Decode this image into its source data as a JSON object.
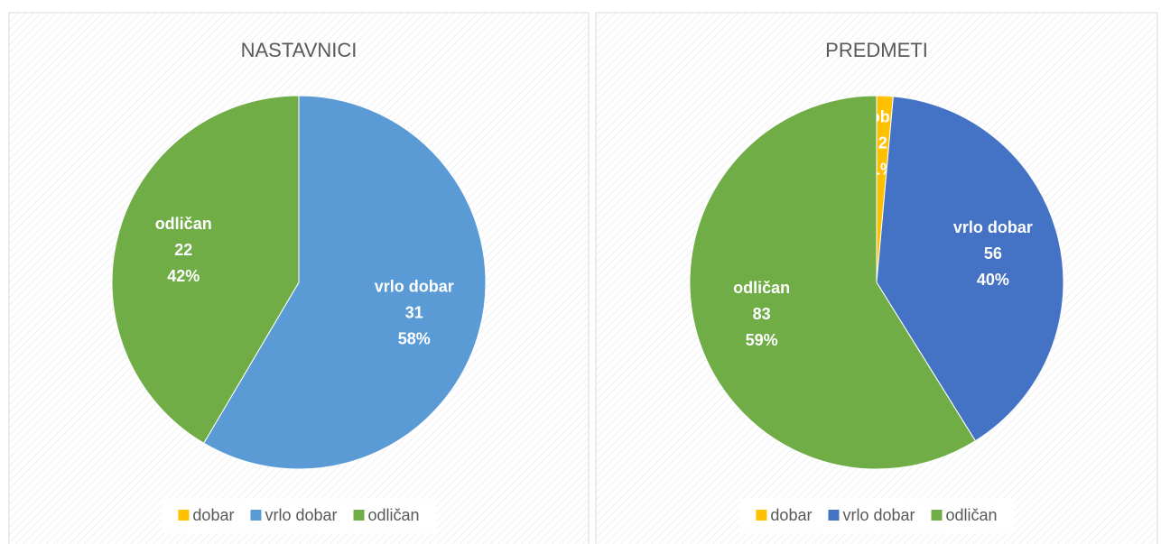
{
  "chart_data": [
    {
      "type": "pie",
      "title": "NASTAVNICI",
      "categories": [
        "dobar",
        "vrlo dobar",
        "odličan"
      ],
      "values": [
        null,
        31,
        22
      ],
      "percentages": [
        null,
        58,
        42
      ],
      "percentage_labels": [
        null,
        "58%",
        "42%"
      ],
      "colors": [
        "#ffc000",
        "#5b9bd5",
        "#70ad47"
      ],
      "legend": "bottom"
    },
    {
      "type": "pie",
      "title": "PREDMETI",
      "categories": [
        "dobar",
        "vrlo dobar",
        "odličan"
      ],
      "values": [
        2,
        56,
        83
      ],
      "percentages": [
        1,
        40,
        59
      ],
      "percentage_labels": [
        "1%",
        "40%",
        "59%"
      ],
      "colors": [
        "#ffc000",
        "#4472c4",
        "#70ad47"
      ],
      "legend": "bottom"
    }
  ]
}
